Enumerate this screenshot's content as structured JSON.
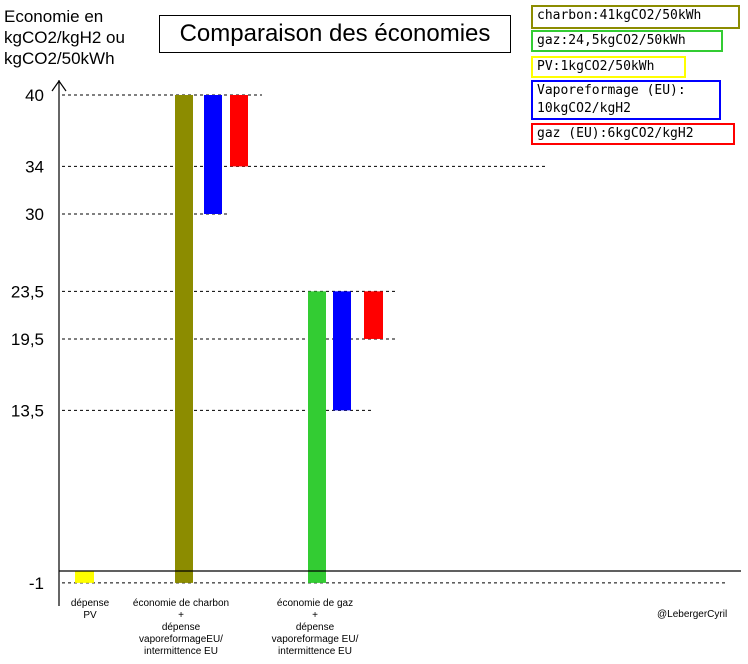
{
  "chart_data": {
    "type": "bar",
    "title": "Comparaison des économies",
    "ylabel": "Economie en kgCO2/kgH2 ou kgCO2/50kWh",
    "ylim": [
      -1,
      40
    ],
    "yticks": [
      "40",
      "34",
      "30",
      "23,5",
      "19,5",
      "13,5",
      "-1"
    ],
    "ytick_values": [
      40,
      34,
      30,
      23.5,
      19.5,
      13.5,
      -1
    ],
    "categories": [
      "dépense PV",
      "économie de charbon + dépense vaporeformageEU/ intermittence EU",
      "économie de gaz + dépense vaporeformage EU/ intermittence EU"
    ],
    "category_lines": [
      [
        "dépense",
        "PV"
      ],
      [
        "économie de charbon",
        "+",
        "dépense",
        "vaporeformageEU/",
        "intermittence EU"
      ],
      [
        "économie de gaz",
        "+",
        "dépense",
        "vaporeformage EU/",
        "intermittence EU"
      ]
    ],
    "bars": [
      {
        "series": "PV",
        "category": 0,
        "from": -1,
        "to": 0,
        "color": "#ffff00"
      },
      {
        "series": "charbon",
        "category": 1,
        "from": -1,
        "to": 40,
        "color": "#8c8c00"
      },
      {
        "series": "Vaporeformage (EU)",
        "category": 1,
        "from": 30,
        "to": 40,
        "color": "#0000ff"
      },
      {
        "series": "gaz (EU)",
        "category": 1,
        "from": 34,
        "to": 40,
        "color": "#ff0000"
      },
      {
        "series": "gaz",
        "category": 2,
        "from": -1,
        "to": 23.5,
        "color": "#33cc33"
      },
      {
        "series": "Vaporeformage (EU)",
        "category": 2,
        "from": 13.5,
        "to": 23.5,
        "color": "#0000ff"
      },
      {
        "series": "gaz (EU)",
        "category": 2,
        "from": 19.5,
        "to": 23.5,
        "color": "#ff0000"
      }
    ],
    "legend": [
      {
        "text": "charbon:41kgCO2/50kWh",
        "color": "#8c8c00"
      },
      {
        "text": "gaz:24,5kgCO2/50kWh",
        "color": "#33cc33"
      },
      {
        "text": "PV:1kgCO2/50kWh",
        "color": "#ffff00"
      },
      {
        "text": "Vaporeformage (EU):\n10kgCO2/kgH2",
        "color": "#0000ff"
      },
      {
        "text": "gaz (EU):6kgCO2/kgH2",
        "color": "#ff0000"
      }
    ],
    "legend_position": "top-right",
    "credit": "@LebergerCyril"
  }
}
